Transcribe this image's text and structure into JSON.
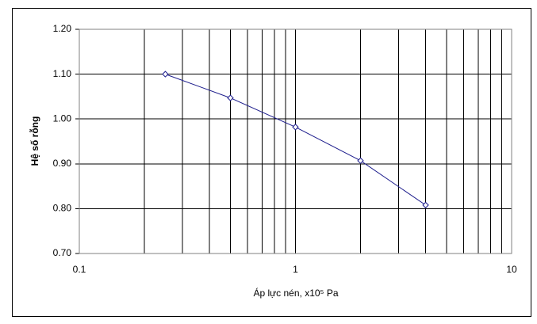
{
  "chart_data": {
    "type": "line",
    "log_x": true,
    "grid": true,
    "x_label": "Áp lực nén, x10⁵ Pa",
    "y_label": "Hệ số rỗng",
    "x": [
      0.25,
      0.5,
      1,
      2,
      4
    ],
    "series": [
      {
        "name": "Hệ số rỗng",
        "color": "#1c1c8c",
        "values": [
          1.1,
          1.047,
          0.982,
          0.907,
          0.808
        ]
      }
    ],
    "xlim": [
      0.1,
      10
    ],
    "xticks": [
      0.1,
      1,
      10
    ],
    "xgrid_minor": [
      0.2,
      0.3,
      0.4,
      0.5,
      0.6,
      0.7,
      0.8,
      0.9,
      2,
      3,
      4,
      5,
      6,
      7,
      8,
      9
    ],
    "ylim": [
      0.7,
      1.2
    ],
    "yticks": [
      {
        "value": 0.7,
        "label": "0.70"
      },
      {
        "value": 0.8,
        "label": "0.80"
      },
      {
        "value": 0.9,
        "label": "0.90"
      },
      {
        "value": 1.0,
        "label": "1.00"
      },
      {
        "value": 1.1,
        "label": "1.10"
      },
      {
        "value": 1.2,
        "label": "1.20"
      }
    ]
  }
}
